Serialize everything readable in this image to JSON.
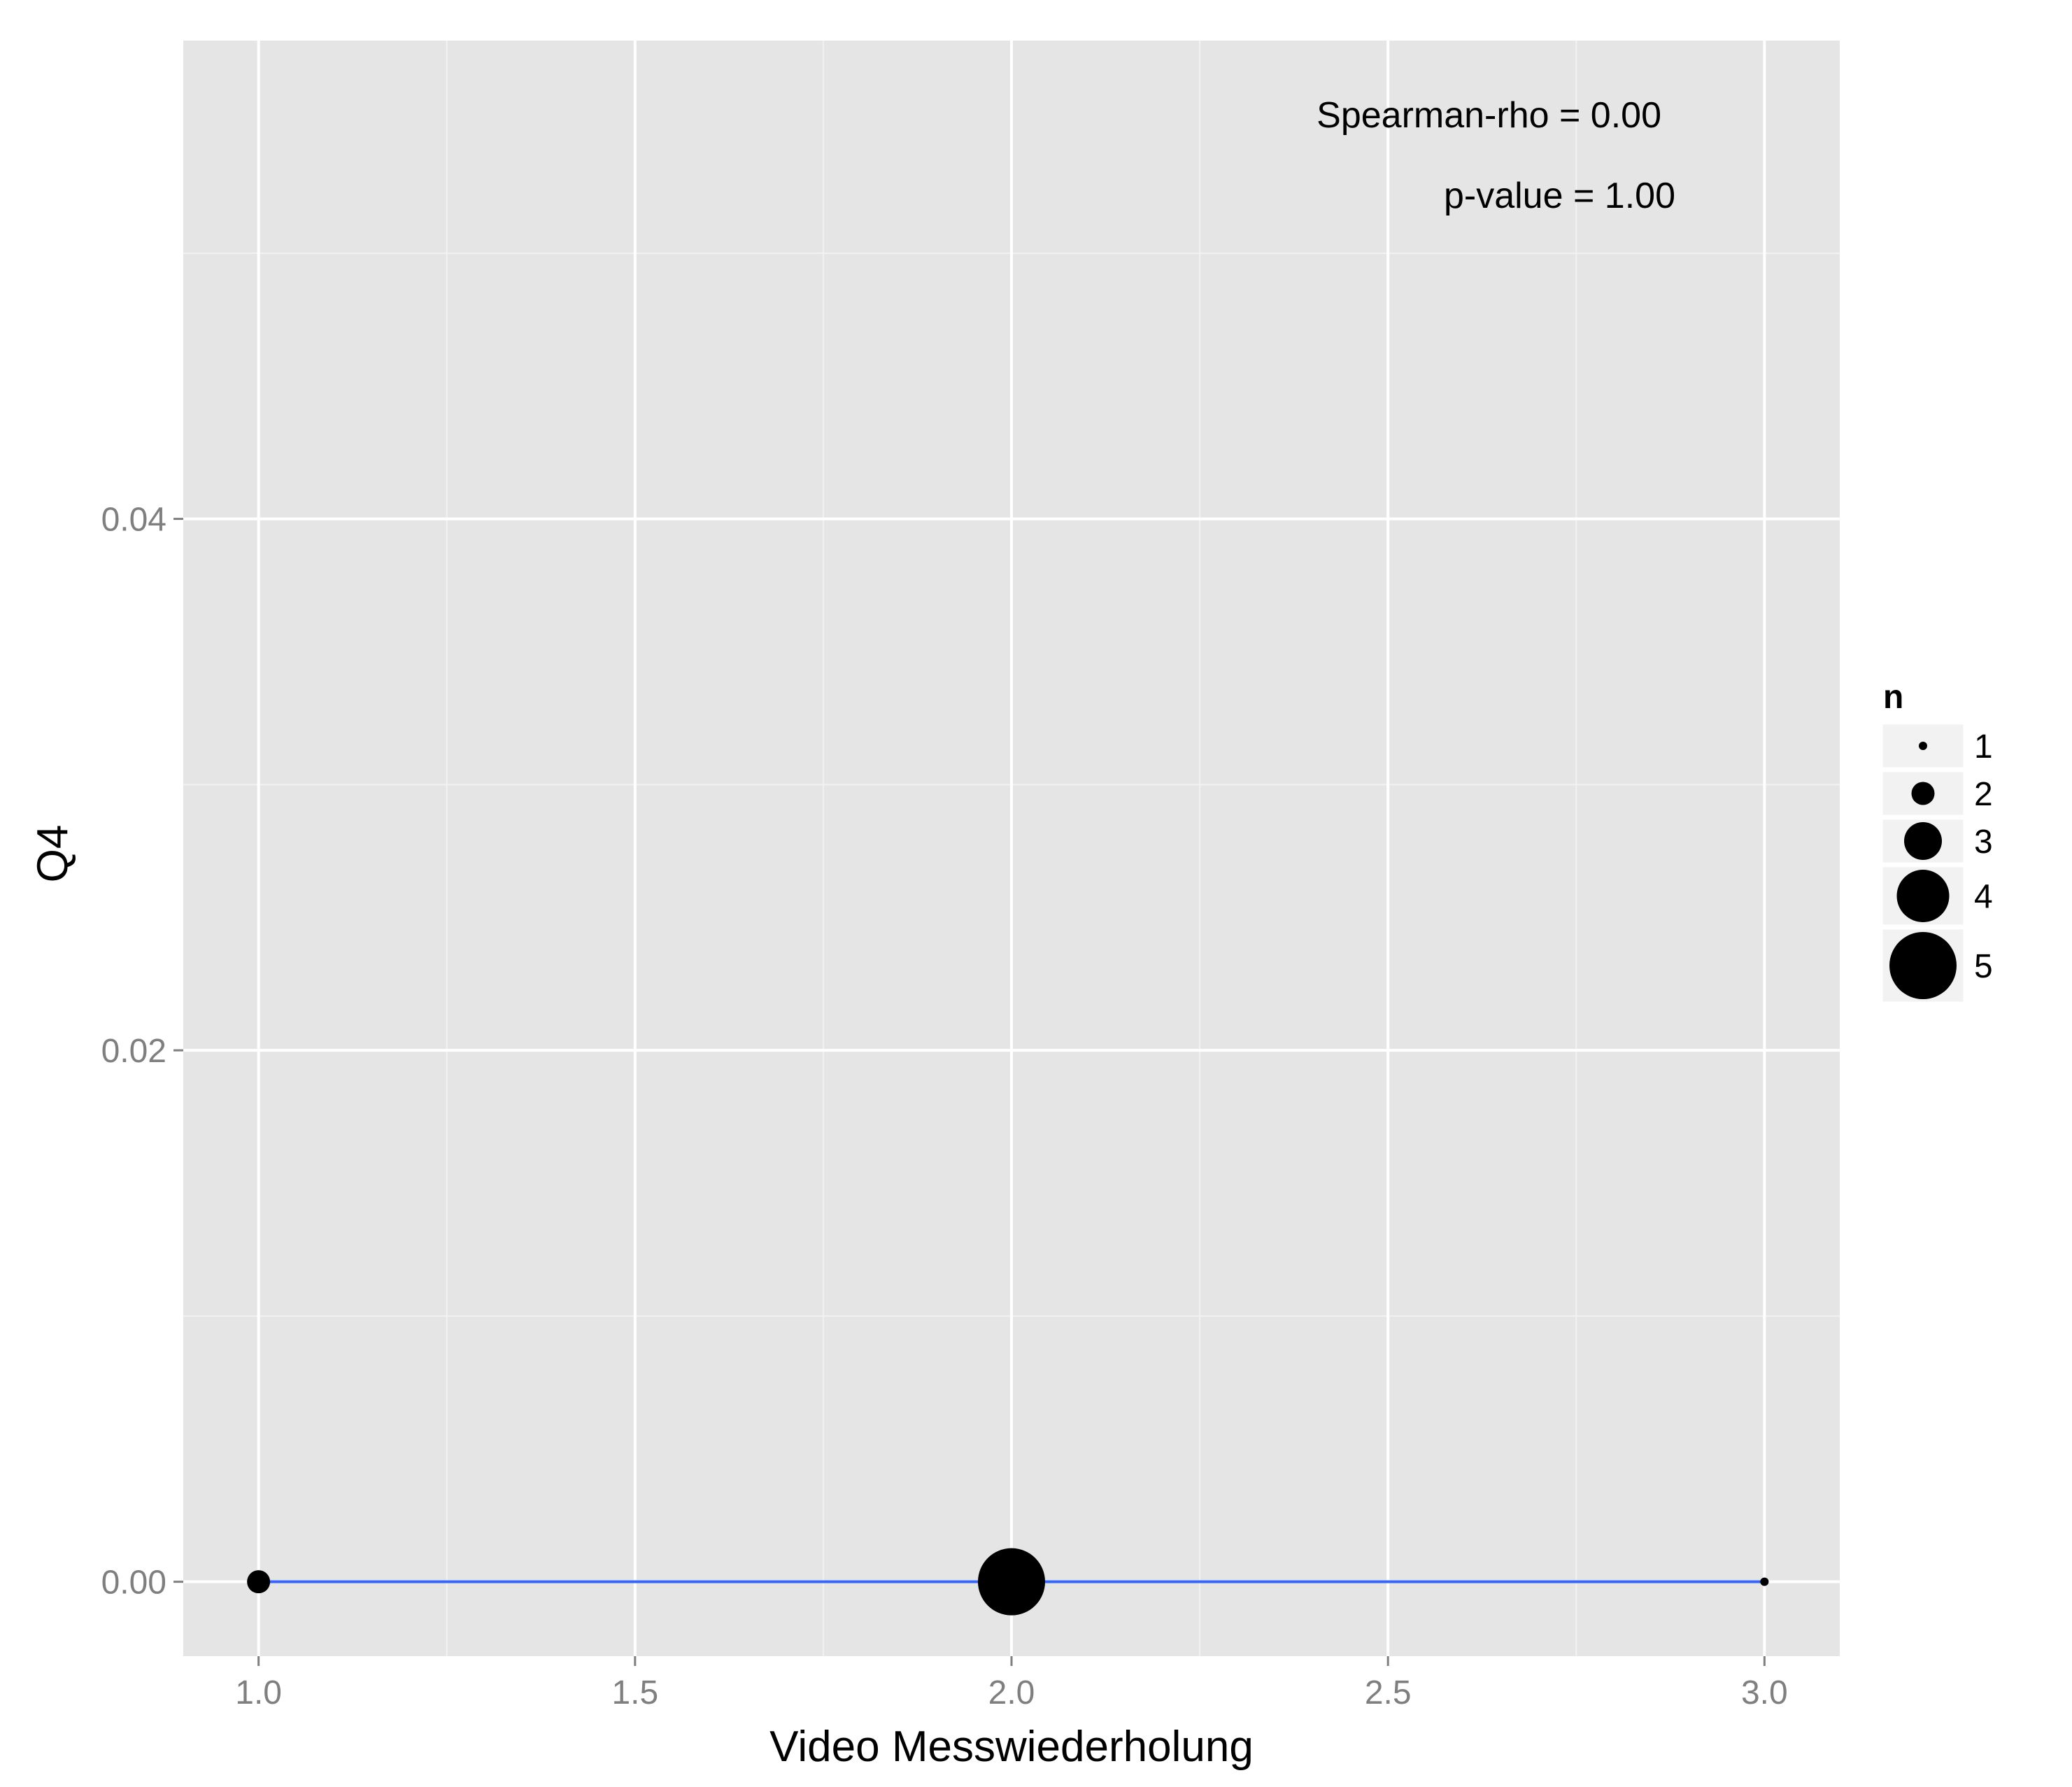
{
  "chart_data": {
    "type": "scatter",
    "xlabel": "Video Messwiederholung",
    "ylabel": "Q4",
    "xlim": [
      0.9,
      3.1
    ],
    "ylim": [
      -0.0028,
      0.058
    ],
    "x_ticks": [
      1.0,
      1.5,
      2.0,
      2.5,
      3.0
    ],
    "x_tick_labels": [
      "1.0",
      "1.5",
      "2.0",
      "2.5",
      "3.0"
    ],
    "y_ticks": [
      0.0,
      0.02,
      0.04
    ],
    "y_tick_labels": [
      "0.00",
      "0.02",
      "0.04"
    ],
    "grid": true,
    "points": [
      {
        "x": 1.0,
        "y": 0.0,
        "n": 2
      },
      {
        "x": 2.0,
        "y": 0.0,
        "n": 5
      },
      {
        "x": 3.0,
        "y": 0.0,
        "n": 1
      }
    ],
    "trend_line": {
      "x": [
        1.0,
        3.0
      ],
      "y": [
        0.0,
        0.0
      ],
      "color": "#3366FF"
    },
    "annotations": [
      "Spearman-rho = 0.00",
      "p-value = 1.00"
    ],
    "legend": {
      "title": "n",
      "position": "right",
      "entries": [
        "1",
        "2",
        "3",
        "4",
        "5"
      ]
    },
    "colors": {
      "panel": "#E5E5E5",
      "grid": "#FFFFFF",
      "points": "#000000"
    }
  }
}
